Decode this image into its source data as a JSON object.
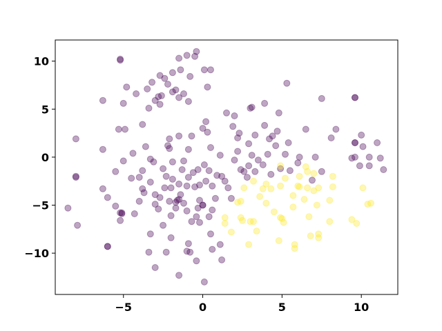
{
  "chart_data": {
    "type": "scatter",
    "title": "",
    "xlabel": "",
    "ylabel": "",
    "xlim": [
      -9.3,
      12.3
    ],
    "ylim": [
      -14.3,
      12.2
    ],
    "xticks": [
      -5,
      0,
      5,
      10
    ],
    "yticks": [
      -10,
      -5,
      0,
      5,
      10
    ],
    "xtick_labels": [
      "−5",
      "0",
      "5",
      "10"
    ],
    "ytick_labels": [
      "−10",
      "−5",
      "0",
      "5",
      "10"
    ],
    "grid": false,
    "legend": "none",
    "marker_opacity": 0.35,
    "series": [
      {
        "color": "#440154",
        "points": [
          [
            -5.2,
            10.2
          ],
          [
            -5.2,
            10.1
          ],
          [
            -4.8,
            7.3
          ],
          [
            -4.2,
            6.6
          ],
          [
            -5.0,
            5.6
          ],
          [
            -6.3,
            5.9
          ],
          [
            -3.4,
            5.1
          ],
          [
            -3.0,
            5.9
          ],
          [
            -2.7,
            5.5
          ],
          [
            -2.8,
            6.3
          ],
          [
            -2.6,
            6.4
          ],
          [
            -3.5,
            7.1
          ],
          [
            -3.2,
            7.8
          ],
          [
            -2.7,
            8.5
          ],
          [
            -2.4,
            8.2
          ],
          [
            -2.2,
            7.6
          ],
          [
            -1.9,
            8.8
          ],
          [
            -1.5,
            10.3
          ],
          [
            -1.0,
            10.6
          ],
          [
            -0.5,
            10.5
          ],
          [
            -0.4,
            11.0
          ],
          [
            0.1,
            9.1
          ],
          [
            0.5,
            9.1
          ],
          [
            -1.4,
            9.1
          ],
          [
            -0.8,
            8.4
          ],
          [
            -1.9,
            6.8
          ],
          [
            -1.2,
            6.6
          ],
          [
            -0.9,
            5.8
          ],
          [
            -1.5,
            6.2
          ],
          [
            -1.7,
            7.0
          ],
          [
            0.3,
            7.3
          ],
          [
            3.0,
            5.1
          ],
          [
            3.1,
            5.2
          ],
          [
            3.9,
            5.6
          ],
          [
            2.0,
            4.3
          ],
          [
            1.5,
            4.6
          ],
          [
            4.8,
            4.6
          ],
          [
            5.3,
            7.7
          ],
          [
            7.5,
            6.1
          ],
          [
            9.6,
            6.2
          ],
          [
            9.6,
            6.2
          ],
          [
            -8.0,
            1.9
          ],
          [
            -6.3,
            0.8
          ],
          [
            -5.3,
            2.9
          ],
          [
            -4.9,
            2.9
          ],
          [
            -3.8,
            3.4
          ],
          [
            -2.1,
            1.9
          ],
          [
            -2.2,
            1.2
          ],
          [
            -1.5,
            2.2
          ],
          [
            -0.7,
            2.2
          ],
          [
            0.0,
            3.0
          ],
          [
            0.2,
            3.7
          ],
          [
            0.3,
            2.6
          ],
          [
            1.9,
            3.2
          ],
          [
            2.2,
            2.0
          ],
          [
            2.3,
            2.5
          ],
          [
            2.9,
            1.4
          ],
          [
            3.3,
            2.3
          ],
          [
            3.9,
            3.3
          ],
          [
            4.2,
            1.9
          ],
          [
            4.4,
            2.2
          ],
          [
            4.6,
            1.2
          ],
          [
            4.7,
            2.7
          ],
          [
            5.4,
            1.5
          ],
          [
            6.5,
            2.9
          ],
          [
            8.4,
            2.9
          ],
          [
            8.1,
            2.0
          ],
          [
            10.0,
            2.3
          ],
          [
            9.6,
            1.5
          ],
          [
            9.6,
            1.5
          ],
          [
            10.1,
            1.1
          ],
          [
            11.0,
            1.5
          ],
          [
            10.5,
            0.0
          ],
          [
            11.2,
            -0.1
          ],
          [
            10.5,
            -0.9
          ],
          [
            11.4,
            -1.3
          ],
          [
            9.9,
            -0.9
          ],
          [
            9.4,
            -0.1
          ],
          [
            9.6,
            0.0
          ],
          [
            7.1,
            0.0
          ],
          [
            -8.0,
            -2.0
          ],
          [
            -8.0,
            -2.1
          ],
          [
            -6.3,
            -3.3
          ],
          [
            -5.5,
            -1.5
          ],
          [
            -5.0,
            -0.4
          ],
          [
            -4.5,
            -2.2
          ],
          [
            -4.4,
            0.4
          ],
          [
            -4.0,
            -2.1
          ],
          [
            -3.8,
            -1.4
          ],
          [
            -3.8,
            -3.3
          ],
          [
            -3.6,
            1.1
          ],
          [
            -3.3,
            -0.2
          ],
          [
            -3.3,
            -2.6
          ],
          [
            -3.1,
            -0.5
          ],
          [
            -3.0,
            -3.9
          ],
          [
            -2.7,
            -4.2
          ],
          [
            -2.5,
            -1.2
          ],
          [
            -2.4,
            -3.2
          ],
          [
            -2.3,
            -2.0
          ],
          [
            -2.1,
            -4.6
          ],
          [
            -2.1,
            0.9
          ],
          [
            -2.0,
            -3.2
          ],
          [
            -1.9,
            -2.3
          ],
          [
            -1.9,
            -0.5
          ],
          [
            -1.7,
            -4.7
          ],
          [
            -1.5,
            -2.8
          ],
          [
            -1.5,
            -4.4
          ],
          [
            -1.4,
            -3.9
          ],
          [
            -1.3,
            -1.3
          ],
          [
            -1.2,
            -0.4
          ],
          [
            -1.0,
            -3.0
          ],
          [
            -0.9,
            -2.1
          ],
          [
            -0.9,
            0.8
          ],
          [
            -0.6,
            -1.6
          ],
          [
            -0.5,
            -3.1
          ],
          [
            -0.3,
            -1.3
          ],
          [
            -0.2,
            -2.9
          ],
          [
            -0.2,
            -4.5
          ],
          [
            0.1,
            -0.8
          ],
          [
            0.2,
            -2.5
          ],
          [
            0.4,
            -1.4
          ],
          [
            0.5,
            1.0
          ],
          [
            0.6,
            -3.0
          ],
          [
            0.9,
            -1.9
          ],
          [
            1.1,
            0.2
          ],
          [
            1.2,
            -2.0
          ],
          [
            1.4,
            -2.5
          ],
          [
            1.6,
            -3.2
          ],
          [
            1.8,
            -4.3
          ],
          [
            2.0,
            -0.3
          ],
          [
            2.2,
            0.6
          ],
          [
            2.4,
            -1.3
          ],
          [
            2.6,
            -1.5
          ],
          [
            2.8,
            -2.1
          ],
          [
            2.9,
            -0.9
          ],
          [
            3.1,
            0.2
          ],
          [
            3.3,
            -1.5
          ],
          [
            3.5,
            -0.3
          ],
          [
            3.8,
            -0.8
          ],
          [
            4.1,
            0.3
          ],
          [
            4.3,
            -1.8
          ],
          [
            4.9,
            -1.2
          ],
          [
            5.2,
            0.3
          ],
          [
            6.1,
            0.0
          ],
          [
            5.5,
            -1.4
          ],
          [
            6.0,
            -0.6
          ],
          [
            6.9,
            -2.4
          ],
          [
            7.5,
            -1.5
          ],
          [
            -8.5,
            -5.3
          ],
          [
            -7.9,
            -7.1
          ],
          [
            -6.0,
            -4.2
          ],
          [
            -5.5,
            -5.1
          ],
          [
            -5.2,
            -5.8
          ],
          [
            -5.1,
            -5.9
          ],
          [
            -5.2,
            -6.6
          ],
          [
            -5.1,
            -5.8
          ],
          [
            -4.3,
            -5.9
          ],
          [
            -4.0,
            -4.6
          ],
          [
            -3.7,
            -3.7
          ],
          [
            -3.0,
            -4.9
          ],
          [
            -2.8,
            -5.4
          ],
          [
            -2.5,
            -7.1
          ],
          [
            -2.0,
            -6.1
          ],
          [
            -1.7,
            -5.3
          ],
          [
            -1.6,
            -4.5
          ],
          [
            -1.2,
            -4.8
          ],
          [
            -1.0,
            -5.6
          ],
          [
            -0.7,
            -6.7
          ],
          [
            -0.4,
            -6.2
          ],
          [
            -0.2,
            -6.8
          ],
          [
            -0.3,
            -5.3
          ],
          [
            0.0,
            -5.0
          ],
          [
            0.0,
            -5.0
          ],
          [
            0.4,
            -6.2
          ],
          [
            0.6,
            -5.5
          ],
          [
            0.8,
            -4.3
          ],
          [
            -6.0,
            -9.3
          ],
          [
            -6.0,
            -9.3
          ],
          [
            -3.3,
            -8.0
          ],
          [
            -3.4,
            -9.9
          ],
          [
            -3.0,
            -11.5
          ],
          [
            -2.3,
            -9.9
          ],
          [
            -2.0,
            -8.4
          ],
          [
            -1.5,
            -12.3
          ],
          [
            -1.0,
            -9.8
          ],
          [
            -0.9,
            -9.0
          ],
          [
            -0.8,
            -9.9
          ],
          [
            -0.4,
            -10.8
          ],
          [
            0.1,
            -13.0
          ],
          [
            0.5,
            -8.0
          ],
          [
            0.6,
            -9.6
          ],
          [
            1.1,
            -9.1
          ],
          [
            1.2,
            -10.7
          ]
        ]
      },
      {
        "color": "#fde725",
        "points": [
          [
            1.4,
            -6.3
          ],
          [
            1.4,
            -6.9
          ],
          [
            1.8,
            -7.8
          ],
          [
            2.2,
            -4.7
          ],
          [
            2.4,
            -4.6
          ],
          [
            2.4,
            -6.3
          ],
          [
            2.5,
            -6.6
          ],
          [
            2.6,
            -3.2
          ],
          [
            2.9,
            -9.1
          ],
          [
            3.0,
            -6.7
          ],
          [
            3.2,
            -6.7
          ],
          [
            3.2,
            -2.5
          ],
          [
            3.4,
            -7.7
          ],
          [
            3.6,
            -4.1
          ],
          [
            3.8,
            -3.3
          ],
          [
            4.0,
            -2.8
          ],
          [
            4.0,
            -4.8
          ],
          [
            4.3,
            -3.3
          ],
          [
            4.5,
            -5.7
          ],
          [
            4.8,
            -8.7
          ],
          [
            4.9,
            -6.3
          ],
          [
            5.0,
            -6.4
          ],
          [
            5.1,
            -6.8
          ],
          [
            4.9,
            -3.0
          ],
          [
            4.9,
            -0.9
          ],
          [
            5.2,
            -2.2
          ],
          [
            5.7,
            -4.0
          ],
          [
            5.7,
            -5.2
          ],
          [
            5.8,
            -9.1
          ],
          [
            5.8,
            -9.5
          ],
          [
            6.0,
            -3.0
          ],
          [
            6.1,
            -3.1
          ],
          [
            6.1,
            -2.0
          ],
          [
            6.4,
            -4.4
          ],
          [
            6.5,
            -1.0
          ],
          [
            6.6,
            -1.5
          ],
          [
            6.6,
            -3.2
          ],
          [
            6.7,
            -6.2
          ],
          [
            6.8,
            -8.2
          ],
          [
            7.0,
            -3.5
          ],
          [
            7.0,
            -1.7
          ],
          [
            7.2,
            -5.0
          ],
          [
            7.3,
            -8.4
          ],
          [
            7.3,
            -8.0
          ],
          [
            7.3,
            -3.2
          ],
          [
            8.0,
            -6.7
          ],
          [
            8.0,
            -4.5
          ],
          [
            8.2,
            -3.1
          ],
          [
            8.2,
            -2.0
          ],
          [
            9.4,
            -6.5
          ],
          [
            9.7,
            -6.9
          ],
          [
            10.1,
            -3.2
          ],
          [
            10.4,
            -4.9
          ],
          [
            10.6,
            -4.8
          ]
        ]
      }
    ]
  }
}
